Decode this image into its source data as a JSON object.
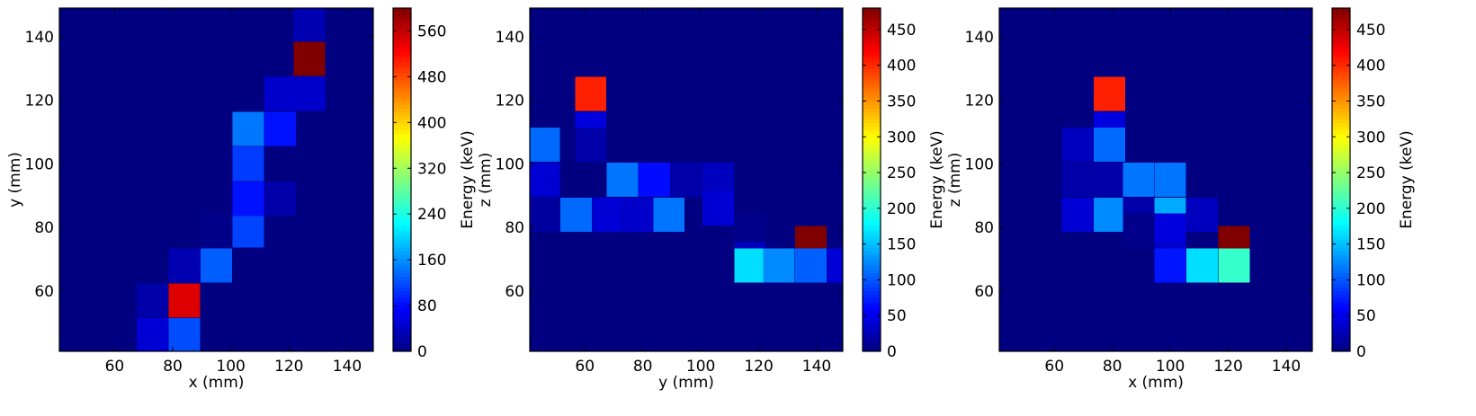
{
  "chart_data": [
    {
      "type": "heatmap",
      "title": "",
      "xlabel": "x (mm)",
      "ylabel": "y (mm)",
      "xlim": [
        41,
        149
      ],
      "ylim": [
        41,
        149
      ],
      "xticks": [
        60,
        80,
        100,
        120,
        140
      ],
      "yticks": [
        60,
        80,
        100,
        120,
        140
      ],
      "bin_size": 10.8,
      "background_value": 0,
      "colormap": "jet",
      "colorbar": {
        "label": "Energy (keV)",
        "min": 0,
        "max": 600,
        "ticks": [
          0,
          80,
          160,
          240,
          320,
          400,
          480,
          560
        ]
      },
      "cells": [
        {
          "x": 73,
          "y": 46,
          "value": 50
        },
        {
          "x": 84,
          "y": 46,
          "value": 120
        },
        {
          "x": 73,
          "y": 57,
          "value": 25
        },
        {
          "x": 84,
          "y": 57,
          "value": 545
        },
        {
          "x": 84,
          "y": 68,
          "value": 30
        },
        {
          "x": 95,
          "y": 68,
          "value": 130
        },
        {
          "x": 95,
          "y": 79,
          "value": 5
        },
        {
          "x": 106,
          "y": 79,
          "value": 115
        },
        {
          "x": 106,
          "y": 89,
          "value": 85
        },
        {
          "x": 117,
          "y": 89,
          "value": 25
        },
        {
          "x": 106,
          "y": 100,
          "value": 110
        },
        {
          "x": 106,
          "y": 111,
          "value": 145
        },
        {
          "x": 117,
          "y": 111,
          "value": 85
        },
        {
          "x": 117,
          "y": 122,
          "value": 45
        },
        {
          "x": 127,
          "y": 122,
          "value": 45
        },
        {
          "x": 127,
          "y": 133,
          "value": 600
        },
        {
          "x": 127,
          "y": 144,
          "value": 30
        }
      ]
    },
    {
      "type": "heatmap",
      "title": "",
      "xlabel": "y (mm)",
      "ylabel": "z (mm)",
      "xlim": [
        41,
        149
      ],
      "ylim": [
        41,
        149
      ],
      "xticks": [
        60,
        80,
        100,
        120,
        140
      ],
      "yticks": [
        60,
        80,
        100,
        120,
        140
      ],
      "bin_size": 10.8,
      "background_value": 0,
      "colormap": "jet",
      "colorbar": {
        "label": "Energy (keV)",
        "min": 0,
        "max": 480,
        "ticks": [
          0,
          50,
          100,
          150,
          200,
          250,
          300,
          350,
          400,
          450
        ]
      },
      "cells": [
        {
          "x": 62,
          "y": 122,
          "value": 405
        },
        {
          "x": 62,
          "y": 111,
          "value": 45
        },
        {
          "x": 46,
          "y": 106,
          "value": 110
        },
        {
          "x": 62,
          "y": 106,
          "value": 20
        },
        {
          "x": 46,
          "y": 95,
          "value": 40
        },
        {
          "x": 46,
          "y": 84,
          "value": 15
        },
        {
          "x": 57,
          "y": 84,
          "value": 110
        },
        {
          "x": 68,
          "y": 84,
          "value": 40
        },
        {
          "x": 79,
          "y": 84,
          "value": 35
        },
        {
          "x": 89,
          "y": 84,
          "value": 115
        },
        {
          "x": 73,
          "y": 95,
          "value": 115
        },
        {
          "x": 84,
          "y": 95,
          "value": 65
        },
        {
          "x": 95,
          "y": 95,
          "value": 20
        },
        {
          "x": 106,
          "y": 95,
          "value": 30
        },
        {
          "x": 106,
          "y": 86,
          "value": 40
        },
        {
          "x": 117,
          "y": 79,
          "value": 5
        },
        {
          "x": 117,
          "y": 70,
          "value": 30
        },
        {
          "x": 138,
          "y": 75,
          "value": 480
        },
        {
          "x": 117,
          "y": 68,
          "value": 165
        },
        {
          "x": 127,
          "y": 68,
          "value": 125
        },
        {
          "x": 138,
          "y": 68,
          "value": 105
        },
        {
          "x": 149,
          "y": 68,
          "value": 40
        }
      ]
    },
    {
      "type": "heatmap",
      "title": "",
      "xlabel": "x (mm)",
      "ylabel": "z (mm)",
      "xlim": [
        41,
        149
      ],
      "ylim": [
        41,
        149
      ],
      "xticks": [
        60,
        80,
        100,
        120,
        140
      ],
      "yticks": [
        60,
        80,
        100,
        120,
        140
      ],
      "bin_size": 10.8,
      "background_value": 0,
      "colormap": "jet",
      "colorbar": {
        "label": "Energy (keV)",
        "min": 0,
        "max": 480,
        "ticks": [
          0,
          50,
          100,
          150,
          200,
          250,
          300,
          350,
          400,
          450
        ]
      },
      "cells": [
        {
          "x": 79,
          "y": 122,
          "value": 405
        },
        {
          "x": 79,
          "y": 111,
          "value": 45
        },
        {
          "x": 68,
          "y": 106,
          "value": 30
        },
        {
          "x": 79,
          "y": 106,
          "value": 110
        },
        {
          "x": 68,
          "y": 95,
          "value": 20
        },
        {
          "x": 79,
          "y": 95,
          "value": 20
        },
        {
          "x": 68,
          "y": 84,
          "value": 40
        },
        {
          "x": 79,
          "y": 84,
          "value": 125
        },
        {
          "x": 89,
          "y": 84,
          "value": 20
        },
        {
          "x": 100,
          "y": 84,
          "value": 140
        },
        {
          "x": 111,
          "y": 84,
          "value": 30
        },
        {
          "x": 89,
          "y": 95,
          "value": 115
        },
        {
          "x": 100,
          "y": 95,
          "value": 115
        },
        {
          "x": 89,
          "y": 79,
          "value": 5
        },
        {
          "x": 100,
          "y": 79,
          "value": 45
        },
        {
          "x": 100,
          "y": 70,
          "value": 35
        },
        {
          "x": 122,
          "y": 75,
          "value": 480
        },
        {
          "x": 100,
          "y": 68,
          "value": 70
        },
        {
          "x": 111,
          "y": 68,
          "value": 165
        },
        {
          "x": 122,
          "y": 68,
          "value": 205
        }
      ]
    }
  ]
}
